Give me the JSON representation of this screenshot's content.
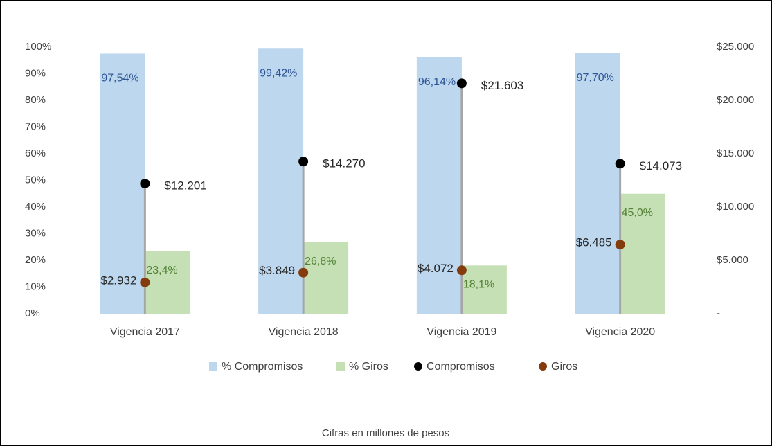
{
  "chart_data": {
    "type": "bar",
    "categories": [
      "Vigencia 2017",
      "Vigencia 2018",
      "Vigencia 2019",
      "Vigencia 2020"
    ],
    "series": [
      {
        "name": "% Compromisos",
        "type": "bar",
        "color": "#bdd7ee",
        "label_color": "#2f5597",
        "values": [
          97.54,
          99.42,
          96.14,
          97.7
        ],
        "value_labels": [
          "97,54%",
          "99,42%",
          "96,14%",
          "97,70%"
        ]
      },
      {
        "name": "% Giros",
        "type": "bar",
        "color": "#c5e0b4",
        "label_color": "#548235",
        "values": [
          23.4,
          26.8,
          18.1,
          45.0
        ],
        "value_labels": [
          "23,4%",
          "26,8%",
          "18,1%",
          "45,0%"
        ]
      },
      {
        "name": "Compromisos",
        "type": "scatter",
        "axis": "y2",
        "color": "#000000",
        "label_color": "#262626",
        "values": [
          12201,
          14270,
          21603,
          14073
        ],
        "value_labels": [
          "$12.201",
          "$14.270",
          "$21.603",
          "$14.073"
        ]
      },
      {
        "name": "Giros",
        "type": "scatter",
        "axis": "y2",
        "color": "#843c0c",
        "label_color": "#262626",
        "values": [
          2932,
          3849,
          4072,
          6485
        ],
        "value_labels": [
          "$2.932",
          "$3.849",
          "$4.072",
          "$6.485"
        ]
      }
    ],
    "ylim": [
      0,
      100
    ],
    "yticks": [
      {
        "value": 0,
        "label": "0%"
      },
      {
        "value": 10,
        "label": "10%"
      },
      {
        "value": 20,
        "label": "20%"
      },
      {
        "value": 30,
        "label": "30%"
      },
      {
        "value": 40,
        "label": "40%"
      },
      {
        "value": 50,
        "label": "50%"
      },
      {
        "value": 60,
        "label": "60%"
      },
      {
        "value": 70,
        "label": "70%"
      },
      {
        "value": 80,
        "label": "80%"
      },
      {
        "value": 90,
        "label": "90%"
      },
      {
        "value": 100,
        "label": "100%"
      }
    ],
    "y2lim": [
      0,
      25000
    ],
    "y2ticks": [
      {
        "value": 0,
        "label": "-"
      },
      {
        "value": 5000,
        "label": "$5.000"
      },
      {
        "value": 10000,
        "label": "$10.000"
      },
      {
        "value": 15000,
        "label": "$15.000"
      },
      {
        "value": 20000,
        "label": "$20.000"
      },
      {
        "value": 25000,
        "label": "$25.000"
      }
    ],
    "legend": "bottom",
    "footnote": "Cifras en millones de pesos"
  }
}
